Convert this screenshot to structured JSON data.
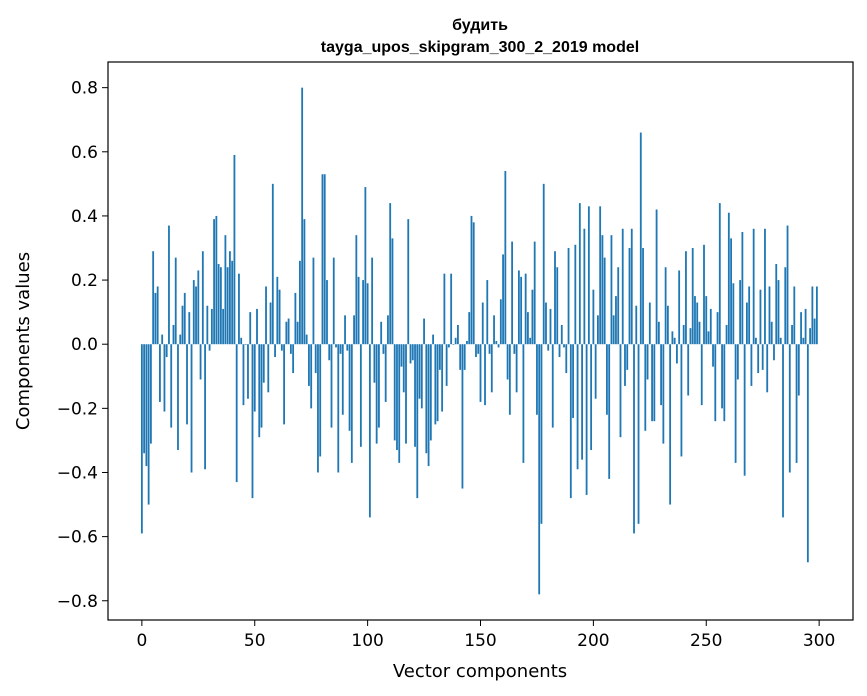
{
  "chart_data": {
    "type": "bar",
    "title": "будить",
    "subtitle": "tayga_upos_skipgram_300_2_2019 model",
    "xlabel": "Vector components",
    "ylabel": "Components values",
    "xlim": [
      -15,
      315
    ],
    "ylim": [
      -0.86,
      0.88
    ],
    "xticks": [
      0,
      50,
      100,
      150,
      200,
      250,
      300
    ],
    "yticks": [
      -0.8,
      -0.6,
      -0.4,
      -0.2,
      0.0,
      0.2,
      0.4,
      0.6,
      0.8
    ],
    "ytick_labels": [
      "−0.8",
      "−0.6",
      "−0.4",
      "−0.2",
      "0.0",
      "0.2",
      "0.4",
      "0.6",
      "0.8"
    ],
    "grid": false,
    "bar_color": "#1f77b4",
    "x": "0..299",
    "values": [
      -0.59,
      -0.34,
      -0.38,
      -0.5,
      -0.31,
      0.29,
      0.16,
      0.18,
      -0.18,
      0.03,
      -0.21,
      -0.04,
      0.37,
      -0.26,
      0.06,
      0.27,
      -0.33,
      0.03,
      0.12,
      0.16,
      -0.25,
      0.1,
      -0.4,
      0.2,
      0.18,
      0.23,
      -0.11,
      0.29,
      -0.39,
      0.12,
      -0.02,
      0.11,
      0.39,
      0.4,
      0.25,
      0.24,
      0.11,
      0.34,
      0.24,
      0.29,
      0.26,
      0.59,
      -0.43,
      0.22,
      0.02,
      -0.19,
      0.0,
      -0.17,
      0.1,
      -0.48,
      -0.21,
      0.11,
      -0.29,
      -0.26,
      -0.12,
      0.18,
      -0.15,
      0.13,
      0.5,
      -0.04,
      0.21,
      0.17,
      -0.02,
      -0.25,
      0.07,
      0.08,
      -0.03,
      -0.09,
      0.16,
      0.07,
      0.26,
      0.8,
      0.39,
      0.03,
      -0.13,
      -0.2,
      0.27,
      -0.09,
      -0.4,
      -0.35,
      0.53,
      0.53,
      0.2,
      -0.05,
      -0.26,
      0.27,
      -0.01,
      -0.4,
      -0.03,
      -0.22,
      0.09,
      -0.02,
      -0.27,
      -0.37,
      0.09,
      0.34,
      0.21,
      -0.32,
      0.2,
      0.49,
      0.19,
      -0.54,
      0.27,
      -0.12,
      -0.31,
      -0.26,
      0.07,
      -0.03,
      -0.18,
      0.09,
      0.44,
      0.33,
      -0.3,
      -0.33,
      -0.37,
      -0.07,
      -0.15,
      -0.31,
      0.39,
      -0.06,
      -0.05,
      -0.32,
      -0.48,
      -0.17,
      -0.2,
      0.08,
      -0.34,
      -0.38,
      -0.3,
      0.03,
      -0.25,
      -0.24,
      -0.08,
      -0.21,
      0.22,
      -0.13,
      -0.01,
      0.22,
      0.0,
      0.02,
      0.06,
      -0.08,
      -0.45,
      -0.08,
      0.01,
      0.1,
      0.4,
      0.38,
      -0.04,
      -0.03,
      -0.18,
      0.13,
      -0.19,
      0.2,
      -0.03,
      -0.15,
      0.09,
      0.01,
      -0.01,
      0.14,
      0.28,
      0.54,
      -0.11,
      -0.22,
      0.32,
      -0.03,
      -0.15,
      0.23,
      0.21,
      -0.37,
      0.22,
      0.1,
      0.02,
      0.17,
      0.32,
      -0.22,
      -0.78,
      -0.56,
      0.5,
      0.13,
      -0.02,
      0.11,
      -0.26,
      0.29,
      0.24,
      -0.04,
      0.06,
      -0.01,
      -0.09,
      0.3,
      -0.48,
      -0.23,
      0.31,
      -0.39,
      0.44,
      -0.36,
      0.36,
      -0.47,
      0.43,
      -0.33,
      0.17,
      -0.17,
      0.09,
      0.43,
      0.34,
      0.27,
      -0.22,
      -0.42,
      0.34,
      0.09,
      0.15,
      0.24,
      -0.29,
      0.36,
      -0.13,
      -0.08,
      0.3,
      0.36,
      -0.59,
      0.12,
      -0.56,
      0.66,
      0.3,
      -0.27,
      -0.11,
      0.13,
      -0.24,
      -0.24,
      0.42,
      0.07,
      -0.19,
      -0.31,
      0.24,
      0.12,
      -0.5,
      0.04,
      0.02,
      -0.06,
      0.23,
      -0.35,
      0.06,
      0.29,
      -0.16,
      0.05,
      0.3,
      0.15,
      0.13,
      0.07,
      -0.19,
      0.31,
      0.15,
      0.04,
      0.11,
      -0.07,
      -0.24,
      0.1,
      0.44,
      -0.2,
      -0.24,
      0.06,
      0.41,
      0.33,
      0.19,
      -0.37,
      -0.11,
      0.2,
      0.35,
      -0.41,
      0.13,
      0.18,
      -0.13,
      0.36,
      0.02,
      -0.09,
      0.17,
      -0.08,
      0.36,
      -0.15,
      0.18,
      0.07,
      -0.05,
      0.25,
      0.2,
      0.02,
      -0.54,
      0.24,
      0.37,
      -0.4,
      0.06,
      0.18,
      -0.37,
      -0.16,
      0.1,
      0.02,
      0.11,
      -0.68,
      0.05,
      0.18,
      0.08,
      0.18
    ]
  }
}
